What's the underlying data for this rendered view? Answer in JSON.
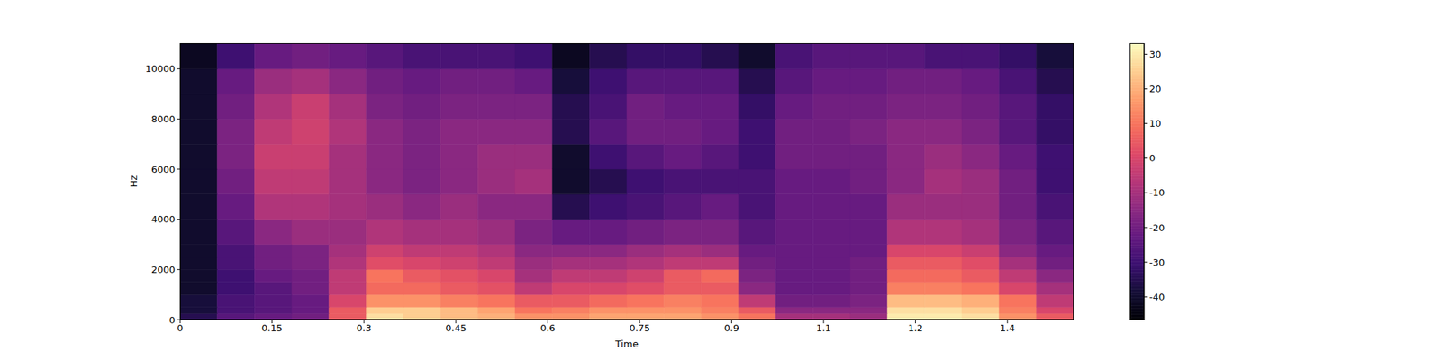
{
  "chart_data": {
    "type": "heatmap",
    "x_label": "Time",
    "y_label": "Hz",
    "xlim": [
      0,
      1.458
    ],
    "xticks": [
      0,
      0.15,
      0.3,
      0.45,
      0.6,
      0.75,
      0.9,
      {
        "value": 1.05,
        "label": "1.1"
      },
      1.2,
      {
        "value": 1.35,
        "label": "1.4"
      }
    ],
    "ylim": [
      0,
      11025
    ],
    "yticks": [
      0,
      2000,
      4000,
      6000,
      8000,
      10000
    ],
    "x_edges": [
      0,
      0.06075,
      0.1215,
      0.18225,
      0.243,
      0.30375,
      0.3645,
      0.42525,
      0.486,
      0.54675,
      0.6075,
      0.66825,
      0.729,
      0.78975,
      0.8505,
      0.91125,
      0.972,
      1.03275,
      1.0935,
      1.15425,
      1.215,
      1.27575,
      1.3365,
      1.39725,
      1.458
    ],
    "y_edges": [
      0,
      250,
      500,
      1000,
      1500,
      2000,
      2500,
      3000,
      4000,
      5000,
      6000,
      7000,
      8000,
      9000,
      10000,
      11025
    ],
    "z": [
      [
        -35,
        -25,
        -22,
        -20,
        5,
        28,
        25,
        22,
        20,
        15,
        15,
        18,
        18,
        18,
        15,
        10,
        -10,
        -10,
        -12,
        30,
        30,
        28,
        15,
        5
      ],
      [
        -38,
        -28,
        -25,
        -22,
        5,
        25,
        25,
        22,
        18,
        10,
        12,
        15,
        15,
        15,
        12,
        5,
        -15,
        -15,
        -15,
        28,
        28,
        25,
        12,
        0
      ],
      [
        -38,
        -28,
        -25,
        -22,
        0,
        15,
        15,
        12,
        10,
        5,
        5,
        8,
        10,
        12,
        10,
        -5,
        -20,
        -20,
        -18,
        22,
        22,
        20,
        10,
        -5
      ],
      [
        -40,
        -30,
        -25,
        -20,
        -5,
        8,
        8,
        5,
        3,
        -5,
        0,
        0,
        2,
        5,
        5,
        -15,
        -22,
        -22,
        -20,
        12,
        12,
        10,
        0,
        -10
      ],
      [
        -40,
        -30,
        -22,
        -20,
        -5,
        10,
        5,
        3,
        0,
        -10,
        -5,
        -5,
        -2,
        5,
        8,
        -18,
        -22,
        -22,
        -20,
        8,
        8,
        5,
        -5,
        -15
      ],
      [
        -40,
        -28,
        -20,
        -18,
        -8,
        2,
        0,
        -2,
        -5,
        -12,
        -10,
        -10,
        -8,
        -5,
        -5,
        -20,
        -22,
        -22,
        -20,
        5,
        5,
        2,
        -10,
        -20
      ],
      [
        -40,
        -28,
        -20,
        -18,
        -10,
        -2,
        -5,
        -5,
        -8,
        -15,
        -15,
        -15,
        -12,
        -10,
        -12,
        -22,
        -22,
        -22,
        -22,
        0,
        0,
        -3,
        -15,
        -22
      ],
      [
        -40,
        -25,
        -15,
        -12,
        -12,
        -8,
        -10,
        -10,
        -12,
        -18,
        -22,
        -22,
        -20,
        -18,
        -18,
        -25,
        -22,
        -22,
        -22,
        -8,
        -8,
        -10,
        -18,
        -25
      ],
      [
        -40,
        -22,
        -8,
        -8,
        -10,
        -12,
        -15,
        -12,
        -15,
        -15,
        -35,
        -30,
        -28,
        -25,
        -22,
        -28,
        -22,
        -22,
        -22,
        -12,
        -12,
        -12,
        -20,
        -28
      ],
      [
        -40,
        -20,
        -5,
        -5,
        -10,
        -15,
        -18,
        -15,
        -12,
        -10,
        -40,
        -35,
        -30,
        -28,
        -28,
        -28,
        -22,
        -22,
        -20,
        -15,
        -10,
        -12,
        -20,
        -30
      ],
      [
        -40,
        -18,
        -3,
        -3,
        -10,
        -15,
        -18,
        -15,
        -12,
        -12,
        -40,
        -30,
        -25,
        -22,
        -25,
        -30,
        -20,
        -20,
        -20,
        -15,
        -12,
        -15,
        -22,
        -30
      ],
      [
        -40,
        -18,
        -5,
        -2,
        -8,
        -15,
        -18,
        -15,
        -15,
        -15,
        -35,
        -25,
        -20,
        -20,
        -22,
        -30,
        -20,
        -20,
        -18,
        -15,
        -15,
        -18,
        -25,
        -32
      ],
      [
        -40,
        -20,
        -8,
        -3,
        -10,
        -18,
        -20,
        -18,
        -18,
        -18,
        -35,
        -28,
        -20,
        -22,
        -22,
        -32,
        -22,
        -20,
        -20,
        -18,
        -18,
        -20,
        -25,
        -32
      ],
      [
        -40,
        -22,
        -12,
        -10,
        -15,
        -20,
        -22,
        -20,
        -20,
        -22,
        -38,
        -30,
        -25,
        -25,
        -25,
        -35,
        -25,
        -22,
        -22,
        -20,
        -20,
        -22,
        -28,
        -35
      ],
      [
        -42,
        -30,
        -22,
        -20,
        -22,
        -25,
        -28,
        -28,
        -28,
        -30,
        -42,
        -35,
        -32,
        -32,
        -35,
        -40,
        -28,
        -25,
        -25,
        -25,
        -28,
        -28,
        -32,
        -38
      ]
    ],
    "z_range": [
      -46.6,
      33.2
    ],
    "z_ticks": [
      -40,
      -30,
      -20,
      -10,
      0,
      10,
      20,
      30
    ]
  }
}
